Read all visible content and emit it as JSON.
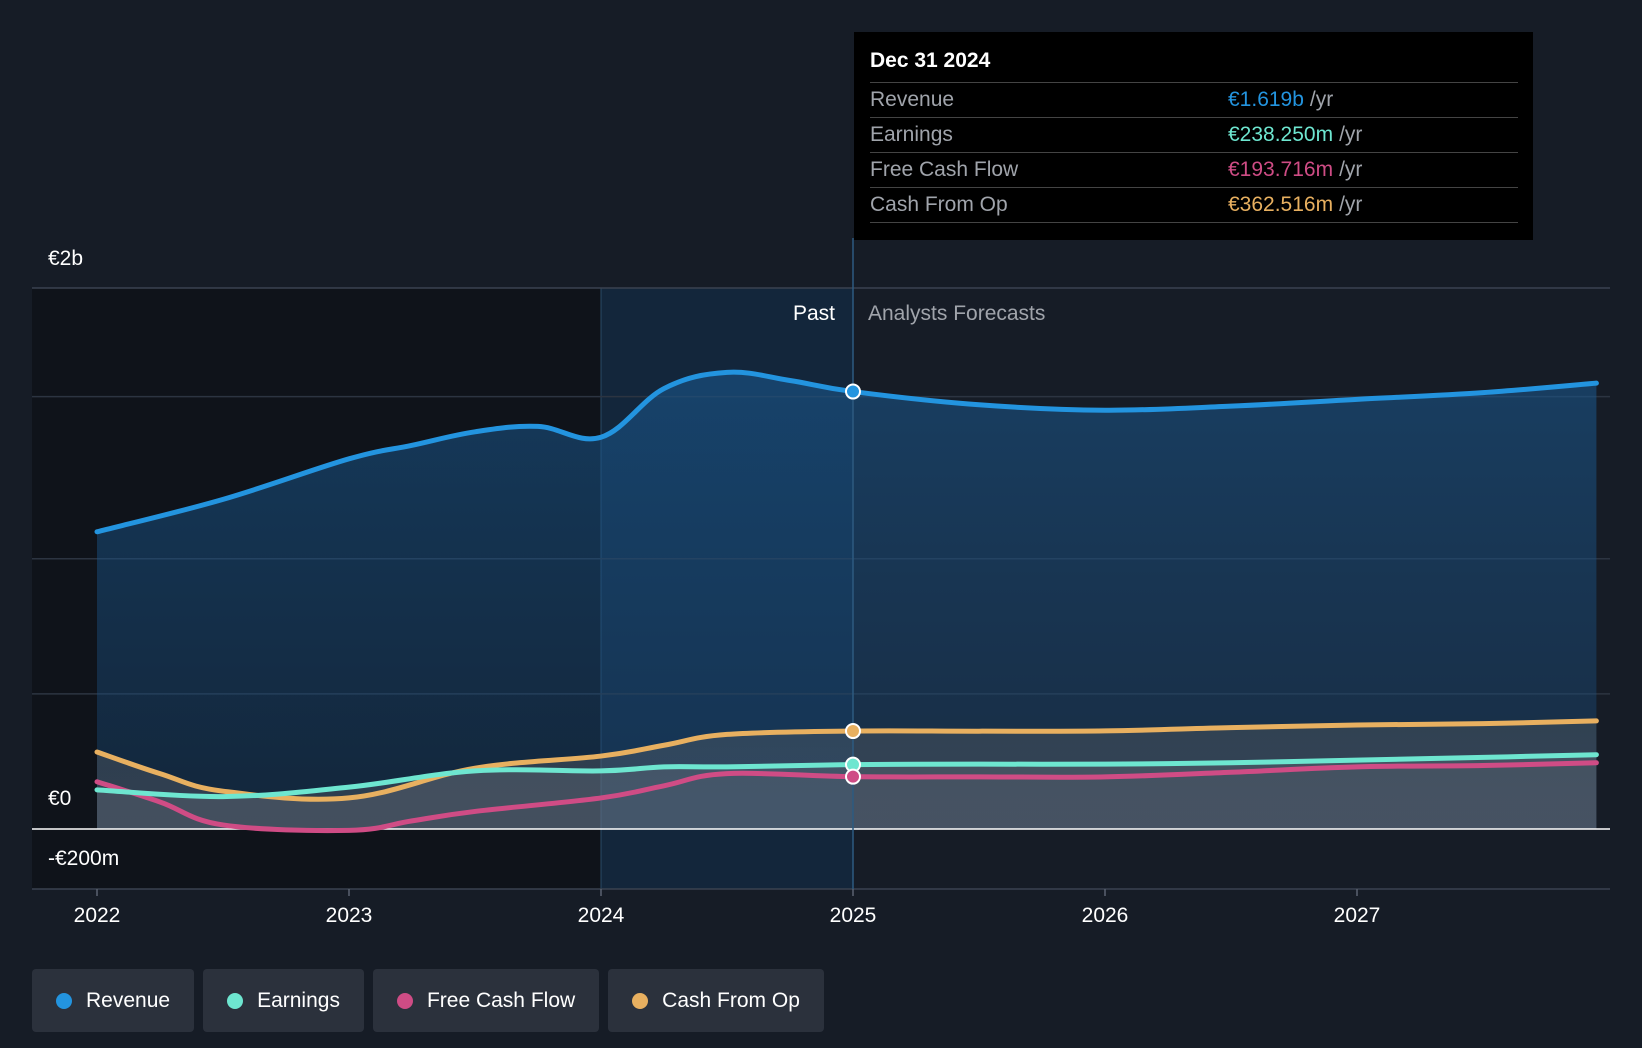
{
  "tooltip": {
    "date": "Dec 31 2024",
    "rows": [
      {
        "label": "Revenue",
        "value": "€1.619b",
        "unit": "/yr",
        "color": "#2394df"
      },
      {
        "label": "Earnings",
        "value": "€238.250m",
        "unit": "/yr",
        "color": "#6ee6d0"
      },
      {
        "label": "Free Cash Flow",
        "value": "€193.716m",
        "unit": "/yr",
        "color": "#cf4c85"
      },
      {
        "label": "Cash From Op",
        "value": "€362.516m",
        "unit": "/yr",
        "color": "#e8b060"
      }
    ]
  },
  "legend": [
    {
      "label": "Revenue",
      "color": "#2394df"
    },
    {
      "label": "Earnings",
      "color": "#6ee6d0"
    },
    {
      "label": "Free Cash Flow",
      "color": "#cf4c85"
    },
    {
      "label": "Cash From Op",
      "color": "#e8b060"
    }
  ],
  "chart_data": {
    "type": "line",
    "y_tick_labels": [
      {
        "value": 2000,
        "label": "€2b"
      },
      {
        "value": 0,
        "label": "€0"
      },
      {
        "value": -200,
        "label": "-€200m"
      }
    ],
    "ylim": [
      -200,
      1800
    ],
    "xlim": [
      2021.75,
      2027.95
    ],
    "x_ticks": [
      2022,
      2023,
      2024,
      2025,
      2026,
      2027
    ],
    "grid": true,
    "past_label": "Past",
    "forecast_label": "Analysts Forecasts",
    "divider_x": 2025,
    "highlight_x": [
      2024,
      2025
    ],
    "series": [
      {
        "name": "Revenue",
        "color": "#2394df",
        "x": [
          2022,
          2022.5,
          2023,
          2023.25,
          2023.5,
          2023.75,
          2024,
          2024.25,
          2024.5,
          2024.75,
          2025,
          2025.5,
          2026,
          2026.5,
          2027,
          2027.5,
          2027.95
        ],
        "y": [
          1100,
          1220,
          1370,
          1420,
          1470,
          1490,
          1450,
          1630,
          1690,
          1660,
          1619,
          1570,
          1550,
          1565,
          1590,
          1615,
          1650
        ]
      },
      {
        "name": "Earnings",
        "color": "#6ee6d0",
        "x": [
          2022,
          2022.5,
          2023,
          2023.5,
          2024,
          2024.25,
          2024.5,
          2025,
          2025.5,
          2026,
          2026.5,
          2027,
          2027.5,
          2027.95
        ],
        "y": [
          145,
          120,
          155,
          215,
          215,
          230,
          230,
          238.25,
          240,
          240,
          245,
          255,
          265,
          275
        ]
      },
      {
        "name": "Free Cash Flow",
        "color": "#cf4c85",
        "x": [
          2022,
          2022.25,
          2022.5,
          2023,
          2023.25,
          2023.5,
          2024,
          2024.25,
          2024.5,
          2025,
          2025.5,
          2026,
          2026.5,
          2027,
          2027.5,
          2027.95
        ],
        "y": [
          175,
          100,
          15,
          -5,
          30,
          65,
          115,
          160,
          205,
          193.716,
          193,
          193,
          210,
          230,
          235,
          245
        ]
      },
      {
        "name": "Cash From Op",
        "color": "#e8b060",
        "x": [
          2022,
          2022.25,
          2022.5,
          2023,
          2023.5,
          2024,
          2024.25,
          2024.5,
          2025,
          2025.5,
          2026,
          2026.5,
          2027,
          2027.5,
          2027.95
        ],
        "y": [
          285,
          205,
          140,
          115,
          225,
          270,
          310,
          350,
          362.516,
          362,
          363,
          375,
          385,
          390,
          400
        ]
      }
    ]
  }
}
